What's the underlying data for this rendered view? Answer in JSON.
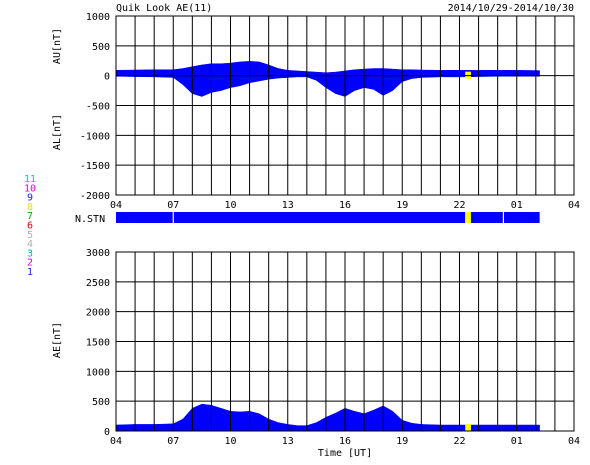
{
  "header": {
    "title": "Quik Look AE(11)",
    "date_range": "2014/10/29-2014/10/30",
    "x_axis_label": "Time [UT]"
  },
  "station_legend": [
    {
      "label": "11",
      "color": "#00c8e0"
    },
    {
      "label": "10",
      "color": "#e000e0"
    },
    {
      "label": "9",
      "color": "#2020ff"
    },
    {
      "label": "8",
      "color": "#f0e000"
    },
    {
      "label": "7",
      "color": "#00b000"
    },
    {
      "label": "6",
      "color": "#e00000"
    },
    {
      "label": "5",
      "color": "#b0b0b0"
    },
    {
      "label": "4",
      "color": "#b0b0b0"
    },
    {
      "label": "3",
      "color": "#00b0b0"
    },
    {
      "label": "2",
      "color": "#e000e0"
    },
    {
      "label": "1",
      "color": "#2020ff"
    }
  ],
  "nstn_label": "N.STN",
  "colors": {
    "fill": "#0000ff",
    "highlight": "#ffff00",
    "grid": "#000000"
  },
  "chart_data": [
    {
      "id": "au_al",
      "type": "area",
      "ylabel_top": "AU[nT]",
      "ylabel_bottom": "AL[nT]",
      "ylim": [
        -2000,
        1000
      ],
      "yticks": [
        "1000",
        "500",
        "0",
        "-500",
        "-1000",
        "-1500",
        "-2000"
      ],
      "xlim": [
        4,
        28
      ],
      "xticks": [
        "04",
        "07",
        "10",
        "13",
        "16",
        "19",
        "22",
        "01",
        "04"
      ],
      "data_end_hour": 26.2,
      "au": {
        "x": [
          4,
          5,
          6,
          7,
          7.5,
          8,
          8.5,
          9,
          9.5,
          10,
          10.5,
          11,
          11.5,
          12,
          12.5,
          13,
          13.5,
          14,
          14.5,
          15,
          15.5,
          16,
          16.5,
          17,
          17.5,
          18,
          18.5,
          19,
          19.5,
          20,
          21,
          22,
          23,
          24,
          25,
          26.2
        ],
        "y": [
          90,
          95,
          100,
          100,
          120,
          150,
          180,
          200,
          200,
          210,
          230,
          240,
          230,
          180,
          120,
          90,
          80,
          70,
          60,
          50,
          60,
          80,
          100,
          110,
          120,
          120,
          110,
          100,
          100,
          95,
          90,
          90,
          90,
          90,
          90,
          85
        ]
      },
      "al": {
        "x": [
          4,
          5,
          6,
          7,
          7.5,
          8,
          8.5,
          9,
          9.5,
          10,
          10.5,
          11,
          11.5,
          12,
          12.5,
          13,
          13.5,
          14,
          14.5,
          15,
          15.5,
          16,
          16.5,
          17,
          17.5,
          18,
          18.5,
          19,
          19.5,
          20,
          21,
          22,
          23,
          24,
          25,
          26.2
        ],
        "y": [
          -10,
          -15,
          -20,
          -30,
          -150,
          -300,
          -350,
          -280,
          -250,
          -200,
          -170,
          -120,
          -90,
          -60,
          -40,
          -30,
          -20,
          -20,
          -80,
          -200,
          -300,
          -350,
          -250,
          -200,
          -230,
          -330,
          -250,
          -100,
          -50,
          -30,
          -20,
          -20,
          -15,
          -10,
          -10,
          -10
        ]
      },
      "highlight_hours": [
        22.3,
        22.6
      ]
    },
    {
      "id": "nstn",
      "type": "bar",
      "xlim": [
        4,
        28
      ],
      "segments": [
        {
          "from": 4,
          "to": 22.3,
          "color": "#0000ff"
        },
        {
          "from": 22.3,
          "to": 22.6,
          "color": "#ffff00"
        },
        {
          "from": 22.6,
          "to": 26.2,
          "color": "#0000ff"
        }
      ],
      "gaps": [
        7,
        24.3
      ]
    },
    {
      "id": "ae",
      "type": "area",
      "ylabel": "AE[nT]",
      "ylim": [
        0,
        3000
      ],
      "yticks": [
        "3000",
        "2500",
        "2000",
        "1500",
        "1000",
        "500",
        "0"
      ],
      "xlim": [
        4,
        28
      ],
      "xticks": [
        "04",
        "07",
        "10",
        "13",
        "16",
        "19",
        "22",
        "01",
        "04"
      ],
      "ae": {
        "x": [
          4,
          5,
          6,
          7,
          7.5,
          8,
          8.5,
          9,
          9.5,
          10,
          10.5,
          11,
          11.5,
          12,
          12.5,
          13,
          13.5,
          14,
          14.5,
          15,
          15.5,
          16,
          16.5,
          17,
          17.5,
          18,
          18.5,
          19,
          19.5,
          20,
          21,
          22,
          23,
          24,
          25,
          26.2
        ],
        "y": [
          100,
          110,
          110,
          120,
          200,
          380,
          450,
          430,
          380,
          330,
          320,
          330,
          290,
          200,
          140,
          110,
          90,
          90,
          140,
          230,
          300,
          380,
          330,
          290,
          350,
          420,
          330,
          180,
          130,
          110,
          100,
          100,
          100,
          100,
          100,
          100
        ]
      },
      "highlight_hours": [
        22.3,
        22.6
      ]
    }
  ]
}
